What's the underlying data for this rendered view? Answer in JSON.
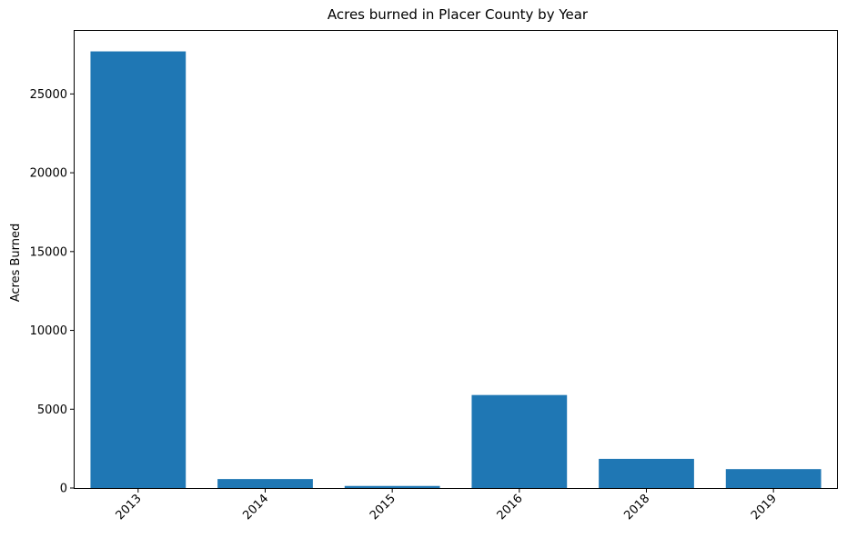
{
  "chart_data": {
    "type": "bar",
    "title": "Acres burned in Placer County by Year",
    "xlabel": "",
    "ylabel": "Acres Burned",
    "categories": [
      "2013",
      "2014",
      "2015",
      "2016",
      "2018",
      "2019"
    ],
    "values": [
      27700,
      570,
      130,
      5900,
      1850,
      1200
    ],
    "ylim": [
      0,
      29000
    ],
    "yticks": [
      0,
      5000,
      10000,
      15000,
      20000,
      25000
    ],
    "bar_color": "#1f77b4",
    "grid": false,
    "legend": "none"
  }
}
